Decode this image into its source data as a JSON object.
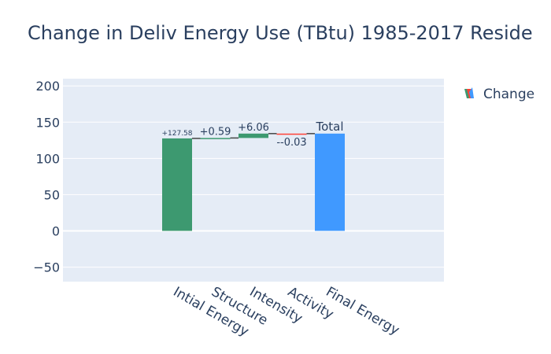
{
  "chart_data": {
    "type": "waterfall",
    "title": "Change in Deliv Energy Use (TBtu) 1985-2017 Reside",
    "categories": [
      "Intial Energy",
      "Structure",
      "Intensity",
      "Activity",
      "Final Energy"
    ],
    "measures": [
      "relative",
      "relative",
      "relative",
      "relative",
      "total"
    ],
    "values": [
      127.58,
      0.59,
      6.06,
      -0.03,
      134.2
    ],
    "data_labels": [
      "+127.58",
      "+0.59",
      "+6.06",
      "--0.03",
      "Total"
    ],
    "ylim": [
      -70,
      210
    ],
    "yticks": [
      -50,
      0,
      50,
      100,
      150,
      200
    ],
    "ytick_labels": [
      "−50",
      "0",
      "50",
      "100",
      "150",
      "200"
    ],
    "legend": {
      "label": "Change",
      "position": "top-right"
    },
    "colors": {
      "increasing": "#3d9970",
      "decreasing": "#ff4136",
      "total": "#4099ff",
      "plot_bg": "#e5ecf6",
      "grid": "#ffffff",
      "text": "#2a3f5f",
      "connector": "#444444"
    }
  }
}
